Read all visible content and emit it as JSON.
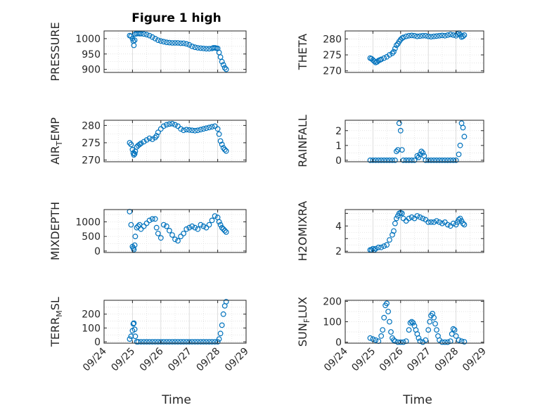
{
  "figure": {
    "title": "Figure 1 high",
    "marker_color": "#0072BD",
    "axis_color": "#262626",
    "grid_color": "#d9d9d9",
    "x_label": "Time",
    "x_ticks": [
      "09/24",
      "09/25",
      "09/26",
      "09/27",
      "09/28",
      "09/29"
    ]
  },
  "chart_data": [
    {
      "type": "scatter",
      "id": "pressure",
      "ylabel": "PRESSURE",
      "ylim": [
        890,
        1025
      ],
      "y_ticks": [
        900,
        950,
        1000
      ],
      "y_tick_labels": [
        "900",
        "950",
        "1000"
      ],
      "xlim": [
        0,
        5
      ],
      "x": [
        0.9,
        0.95,
        1.0,
        1.03,
        1.05,
        1.08,
        1.1,
        1.15,
        1.2,
        1.25,
        1.3,
        1.4,
        1.5,
        1.6,
        1.7,
        1.8,
        1.9,
        2.0,
        2.1,
        2.2,
        2.3,
        2.4,
        2.5,
        2.6,
        2.7,
        2.8,
        2.9,
        3.0,
        3.1,
        3.2,
        3.3,
        3.4,
        3.5,
        3.6,
        3.7,
        3.8,
        3.85,
        3.9,
        3.95,
        4.0,
        4.05,
        4.1,
        4.15,
        4.2,
        4.25,
        4.3
      ],
      "y": [
        1010,
        1008,
        1000,
        992,
        978,
        995,
        1015,
        1016,
        1017,
        1016,
        1016,
        1015,
        1013,
        1010,
        1005,
        1000,
        995,
        992,
        990,
        988,
        987,
        986,
        986,
        986,
        985,
        985,
        983,
        980,
        975,
        972,
        970,
        969,
        968,
        967,
        967,
        968,
        970,
        970,
        969,
        968,
        955,
        940,
        925,
        915,
        905,
        900
      ]
    },
    {
      "type": "scatter",
      "id": "theta",
      "ylabel": "THETA",
      "ylim": [
        269.5,
        282.5
      ],
      "y_ticks": [
        270,
        275,
        280
      ],
      "y_tick_labels": [
        "270",
        "275",
        "280"
      ],
      "xlim": [
        0,
        5
      ],
      "x": [
        0.9,
        0.95,
        1.0,
        1.05,
        1.1,
        1.15,
        1.2,
        1.25,
        1.3,
        1.4,
        1.5,
        1.6,
        1.7,
        1.75,
        1.8,
        1.85,
        1.9,
        1.95,
        2.0,
        2.05,
        2.1,
        2.2,
        2.3,
        2.4,
        2.5,
        2.6,
        2.7,
        2.8,
        2.9,
        3.0,
        3.1,
        3.2,
        3.3,
        3.4,
        3.5,
        3.6,
        3.7,
        3.8,
        3.9,
        4.0,
        4.05,
        4.1,
        4.15,
        4.2,
        4.25,
        4.3
      ],
      "y": [
        274.0,
        273.8,
        273.4,
        273.0,
        272.6,
        272.8,
        273.2,
        273.4,
        273.6,
        274.0,
        274.4,
        275.0,
        275.5,
        276.0,
        277.0,
        278.0,
        278.5,
        279.2,
        279.8,
        280.2,
        280.5,
        280.8,
        281.0,
        281.1,
        281.0,
        280.8,
        280.9,
        281.0,
        281.0,
        280.8,
        280.7,
        280.8,
        280.9,
        281.0,
        281.1,
        281.0,
        281.2,
        281.4,
        281.2,
        281.0,
        281.5,
        281.8,
        281.3,
        280.6,
        280.8,
        281.2
      ]
    },
    {
      "type": "scatter",
      "id": "air_temp",
      "ylabel": "AIR",
      "ylabel_sub": "T",
      "ylabel_rest": "EMP",
      "ylim": [
        269.5,
        281.5
      ],
      "y_ticks": [
        270,
        275,
        280
      ],
      "y_tick_labels": [
        "270",
        "275",
        "280"
      ],
      "xlim": [
        0,
        5
      ],
      "x": [
        0.9,
        0.95,
        1.0,
        1.03,
        1.05,
        1.08,
        1.1,
        1.15,
        1.2,
        1.25,
        1.3,
        1.4,
        1.5,
        1.6,
        1.7,
        1.8,
        1.85,
        1.9,
        2.0,
        2.1,
        2.2,
        2.3,
        2.4,
        2.5,
        2.6,
        2.7,
        2.8,
        2.9,
        3.0,
        3.1,
        3.2,
        3.3,
        3.4,
        3.5,
        3.6,
        3.7,
        3.8,
        3.9,
        4.0,
        4.05,
        4.1,
        4.15,
        4.2,
        4.25,
        4.3
      ],
      "y": [
        275.0,
        274.5,
        273.0,
        272.0,
        271.5,
        271.8,
        272.5,
        273.8,
        274.2,
        274.5,
        274.8,
        275.3,
        275.8,
        276.3,
        276.0,
        276.5,
        277.0,
        278.0,
        279.0,
        279.8,
        280.2,
        280.4,
        280.5,
        280.2,
        279.8,
        279.0,
        278.6,
        278.8,
        278.7,
        278.6,
        278.5,
        278.6,
        278.8,
        279.0,
        279.2,
        279.4,
        279.6,
        279.8,
        279.0,
        277.5,
        275.5,
        274.5,
        273.5,
        273.0,
        272.6
      ]
    },
    {
      "type": "scatter",
      "id": "rainfall",
      "ylabel": "RAINFALL",
      "ylim": [
        -0.1,
        2.7
      ],
      "y_ticks": [
        0,
        1,
        2
      ],
      "y_tick_labels": [
        "0",
        "1",
        "2"
      ],
      "xlim": [
        0,
        5
      ],
      "x": [
        0.9,
        1.0,
        1.1,
        1.2,
        1.3,
        1.4,
        1.5,
        1.6,
        1.7,
        1.8,
        1.85,
        1.9,
        1.95,
        2.0,
        2.05,
        2.1,
        2.2,
        2.3,
        2.4,
        2.5,
        2.6,
        2.65,
        2.7,
        2.75,
        2.8,
        2.85,
        2.9,
        3.0,
        3.1,
        3.2,
        3.3,
        3.4,
        3.5,
        3.6,
        3.7,
        3.8,
        3.9,
        4.0,
        4.1,
        4.15,
        4.2,
        4.25,
        4.3
      ],
      "y": [
        0,
        0,
        0,
        0,
        0,
        0,
        0,
        0,
        0,
        0,
        0.6,
        0.7,
        2.5,
        2.0,
        0.7,
        0,
        0,
        0,
        0,
        0,
        0.3,
        0.2,
        0.4,
        0.6,
        0.5,
        0.3,
        0,
        0,
        0,
        0,
        0,
        0,
        0,
        0,
        0,
        0,
        0,
        0,
        0.4,
        1.0,
        2.5,
        2.2,
        1.6
      ]
    },
    {
      "type": "scatter",
      "id": "mixdepth",
      "ylabel": "MIXDEPTH",
      "ylim": [
        -50,
        1420
      ],
      "y_ticks": [
        0,
        500,
        1000
      ],
      "y_tick_labels": [
        "0",
        "500",
        "1000"
      ],
      "xlim": [
        0,
        5
      ],
      "x": [
        0.9,
        0.95,
        1.0,
        1.03,
        1.05,
        1.08,
        1.1,
        1.15,
        1.2,
        1.25,
        1.3,
        1.4,
        1.5,
        1.6,
        1.7,
        1.8,
        1.85,
        1.9,
        2.0,
        2.1,
        2.2,
        2.3,
        2.4,
        2.5,
        2.6,
        2.7,
        2.8,
        2.9,
        3.0,
        3.1,
        3.2,
        3.3,
        3.4,
        3.5,
        3.6,
        3.7,
        3.8,
        3.9,
        4.0,
        4.05,
        4.1,
        4.15,
        4.2,
        4.25,
        4.3
      ],
      "y": [
        1350,
        900,
        150,
        100,
        50,
        200,
        500,
        800,
        850,
        900,
        750,
        850,
        950,
        1050,
        1100,
        1100,
        800,
        600,
        450,
        900,
        850,
        700,
        550,
        400,
        350,
        500,
        600,
        750,
        800,
        850,
        800,
        750,
        900,
        850,
        800,
        900,
        1050,
        1200,
        1150,
        1000,
        900,
        800,
        750,
        700,
        650
      ]
    },
    {
      "type": "scatter",
      "id": "h2omixra",
      "ylabel": "H2OMIXRA",
      "ylim": [
        1.9,
        5.3
      ],
      "y_ticks": [
        2,
        3,
        4,
        5
      ],
      "y_tick_labels": [
        "2",
        "",
        "4",
        ""
      ],
      "xlim": [
        0,
        5
      ],
      "x": [
        0.9,
        0.95,
        1.0,
        1.05,
        1.1,
        1.2,
        1.3,
        1.4,
        1.5,
        1.6,
        1.7,
        1.75,
        1.8,
        1.85,
        1.9,
        1.95,
        2.0,
        2.05,
        2.1,
        2.2,
        2.3,
        2.4,
        2.5,
        2.6,
        2.7,
        2.8,
        2.9,
        3.0,
        3.1,
        3.2,
        3.3,
        3.4,
        3.5,
        3.6,
        3.7,
        3.8,
        3.9,
        4.0,
        4.05,
        4.1,
        4.15,
        4.2,
        4.25,
        4.3
      ],
      "y": [
        2.1,
        2.1,
        2.2,
        2.1,
        2.2,
        2.3,
        2.3,
        2.4,
        2.5,
        2.9,
        3.3,
        3.6,
        4.2,
        4.6,
        4.8,
        5.0,
        5.05,
        5.0,
        4.6,
        4.4,
        4.6,
        4.7,
        4.6,
        4.8,
        4.7,
        4.6,
        4.5,
        4.3,
        4.3,
        4.3,
        4.4,
        4.3,
        4.2,
        4.3,
        4.1,
        4.0,
        4.2,
        4.1,
        4.3,
        4.5,
        4.6,
        4.4,
        4.2,
        4.1
      ]
    },
    {
      "type": "scatter",
      "id": "terr_msl",
      "ylabel": "TERR",
      "ylabel_sub": "M",
      "ylabel_rest": "SL",
      "ylim": [
        -10,
        300
      ],
      "y_ticks": [
        0,
        100,
        200
      ],
      "y_tick_labels": [
        "0",
        "100",
        "200"
      ],
      "xlim": [
        0,
        5
      ],
      "x": [
        0.9,
        0.95,
        1.0,
        1.03,
        1.05,
        1.08,
        1.1,
        1.15,
        1.2,
        1.3,
        1.4,
        1.5,
        1.6,
        1.7,
        1.8,
        1.9,
        2.0,
        2.1,
        2.2,
        2.3,
        2.4,
        2.5,
        2.6,
        2.7,
        2.8,
        2.9,
        3.0,
        3.1,
        3.2,
        3.3,
        3.4,
        3.5,
        3.6,
        3.7,
        3.8,
        3.9,
        4.0,
        4.05,
        4.1,
        4.15,
        4.2,
        4.25,
        4.3
      ],
      "y": [
        20,
        40,
        80,
        130,
        135,
        90,
        40,
        0,
        0,
        0,
        0,
        0,
        0,
        0,
        0,
        0,
        0,
        0,
        0,
        0,
        0,
        0,
        0,
        0,
        0,
        0,
        0,
        0,
        0,
        0,
        0,
        0,
        0,
        0,
        0,
        0,
        0,
        20,
        60,
        120,
        200,
        260,
        290
      ]
    },
    {
      "type": "scatter",
      "id": "sunflux",
      "ylabel": "SUN",
      "ylabel_sub": "F",
      "ylabel_rest": "LUX",
      "ylim": [
        -5,
        205
      ],
      "y_ticks": [
        0,
        100,
        200
      ],
      "y_tick_labels": [
        "0",
        "100",
        "200"
      ],
      "xlim": [
        0,
        5
      ],
      "x": [
        0.9,
        1.0,
        1.1,
        1.2,
        1.3,
        1.35,
        1.4,
        1.45,
        1.5,
        1.55,
        1.6,
        1.65,
        1.7,
        1.75,
        1.8,
        1.9,
        2.0,
        2.1,
        2.2,
        2.3,
        2.35,
        2.4,
        2.45,
        2.5,
        2.55,
        2.6,
        2.65,
        2.7,
        2.8,
        2.9,
        3.0,
        3.05,
        3.1,
        3.15,
        3.2,
        3.25,
        3.3,
        3.35,
        3.4,
        3.5,
        3.6,
        3.7,
        3.8,
        3.85,
        3.9,
        3.95,
        4.0,
        4.1,
        4.2,
        4.3
      ],
      "y": [
        20,
        15,
        10,
        5,
        30,
        60,
        120,
        180,
        190,
        150,
        100,
        50,
        20,
        10,
        5,
        0,
        0,
        0,
        5,
        60,
        95,
        100,
        95,
        80,
        60,
        40,
        20,
        5,
        0,
        10,
        60,
        100,
        130,
        140,
        120,
        90,
        60,
        30,
        10,
        0,
        0,
        0,
        5,
        40,
        65,
        60,
        30,
        10,
        5,
        2
      ]
    }
  ]
}
